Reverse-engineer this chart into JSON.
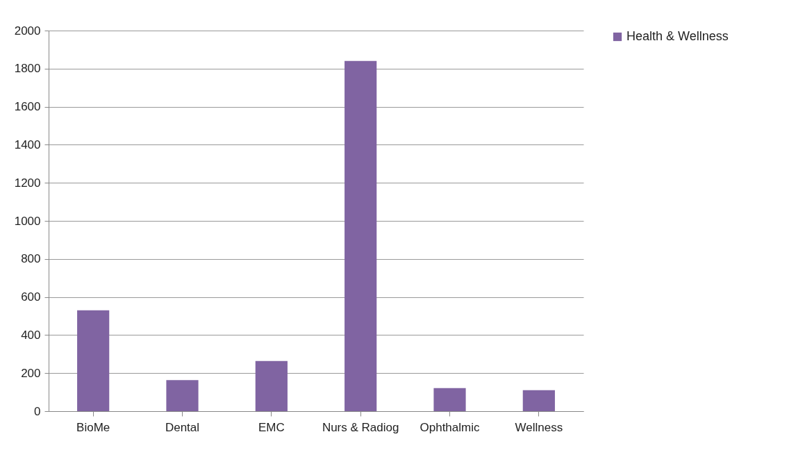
{
  "chart_data": {
    "type": "bar",
    "categories": [
      "BioMe",
      "Dental",
      "EMC",
      "Nurs & Radiog",
      "Ophthalmic",
      "Wellness"
    ],
    "series": [
      {
        "name": "Health & Wellness",
        "color": "#8064a2",
        "values": [
          530,
          163,
          264,
          1840,
          121,
          110
        ]
      }
    ],
    "ylim": [
      0,
      2000
    ],
    "yticks": [
      0,
      200,
      400,
      600,
      800,
      1000,
      1200,
      1400,
      1600,
      1800,
      2000
    ],
    "grid": "y",
    "legend": "right"
  }
}
